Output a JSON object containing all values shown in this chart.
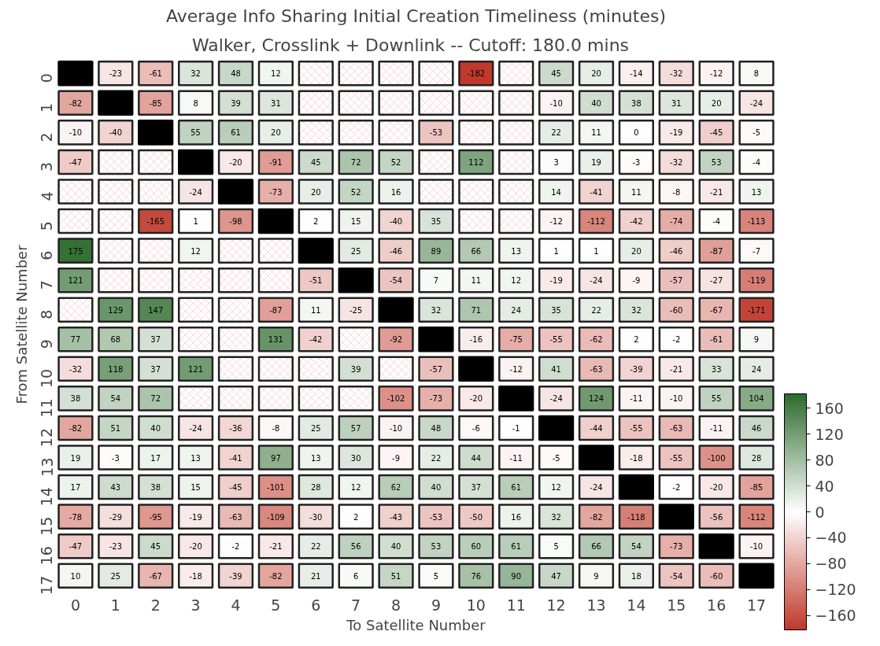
{
  "chart_data": {
    "type": "heatmap",
    "title": "Average Info Sharing Initial Creation Timeliness (minutes)",
    "subtitle": "Walker, Crosslink + Downlink  --  Cutoff: 180.0 mins",
    "xlabel": "To Satellite Number",
    "ylabel": "From Satellite Number",
    "categories": [
      "0",
      "1",
      "2",
      "3",
      "4",
      "5",
      "6",
      "7",
      "8",
      "9",
      "10",
      "11",
      "12",
      "13",
      "14",
      "15",
      "16",
      "17"
    ],
    "y_categories": [
      "0",
      "1",
      "2",
      "3",
      "4",
      "5",
      "6",
      "7",
      "8",
      "9",
      "10",
      "11",
      "12",
      "13",
      "14",
      "15",
      "16",
      "17"
    ],
    "cells": [
      [
        null,
        -23,
        -61,
        32,
        48,
        12,
        null,
        null,
        null,
        null,
        -182,
        null,
        45,
        20,
        -14,
        -32,
        -12,
        8
      ],
      [
        -82,
        null,
        -85,
        8,
        39,
        31,
        null,
        null,
        null,
        null,
        null,
        null,
        -10,
        40,
        38,
        31,
        20,
        -24
      ],
      [
        -10,
        -40,
        null,
        55,
        61,
        20,
        null,
        null,
        null,
        -53,
        null,
        null,
        22,
        11,
        0,
        -19,
        -45,
        -5
      ],
      [
        -47,
        null,
        null,
        null,
        -20,
        -91,
        45,
        72,
        52,
        null,
        112,
        null,
        3,
        19,
        -3,
        -32,
        53,
        -4
      ],
      [
        null,
        null,
        null,
        -24,
        null,
        -73,
        20,
        52,
        16,
        null,
        null,
        null,
        14,
        -41,
        11,
        -8,
        -21,
        13
      ],
      [
        null,
        null,
        -165,
        1,
        -98,
        null,
        2,
        15,
        -40,
        35,
        null,
        null,
        -12,
        -112,
        -42,
        -74,
        -4,
        -113
      ],
      [
        175,
        null,
        null,
        12,
        null,
        null,
        null,
        25,
        -46,
        89,
        66,
        13,
        1,
        1,
        20,
        -46,
        -87,
        -7
      ],
      [
        121,
        null,
        null,
        null,
        null,
        null,
        -51,
        null,
        -54,
        7,
        11,
        12,
        -19,
        -24,
        -9,
        -57,
        -27,
        -119
      ],
      [
        null,
        129,
        147,
        null,
        null,
        -87,
        11,
        -25,
        null,
        32,
        71,
        24,
        35,
        22,
        32,
        -60,
        -67,
        -171
      ],
      [
        77,
        68,
        37,
        null,
        null,
        131,
        -42,
        null,
        -92,
        null,
        -16,
        -75,
        -55,
        -62,
        2,
        -2,
        -61,
        9
      ],
      [
        -32,
        118,
        37,
        121,
        null,
        null,
        null,
        39,
        null,
        -57,
        null,
        -12,
        41,
        -63,
        -39,
        -21,
        33,
        24
      ],
      [
        38,
        54,
        72,
        null,
        null,
        null,
        null,
        null,
        -102,
        -73,
        -20,
        null,
        -24,
        124,
        -11,
        -10,
        55,
        104
      ],
      [
        -82,
        51,
        40,
        -24,
        -36,
        -8,
        25,
        57,
        -10,
        48,
        -6,
        -1,
        null,
        -44,
        -55,
        -63,
        -11,
        46
      ],
      [
        19,
        -3,
        17,
        13,
        -41,
        97,
        13,
        30,
        -9,
        22,
        44,
        -11,
        -5,
        null,
        -18,
        -55,
        -100,
        28
      ],
      [
        17,
        43,
        38,
        15,
        -45,
        -101,
        28,
        12,
        62,
        40,
        37,
        61,
        12,
        -24,
        null,
        -2,
        -20,
        -85
      ],
      [
        -78,
        -29,
        -95,
        -19,
        -63,
        -109,
        -30,
        2,
        -43,
        -53,
        -50,
        16,
        32,
        -82,
        -118,
        null,
        -56,
        -112
      ],
      [
        -47,
        -23,
        45,
        -20,
        -2,
        -21,
        22,
        56,
        40,
        53,
        60,
        61,
        5,
        66,
        54,
        -73,
        null,
        -10
      ],
      [
        10,
        25,
        -67,
        -18,
        -39,
        -82,
        21,
        6,
        51,
        5,
        76,
        90,
        47,
        9,
        18,
        -54,
        -60,
        null
      ]
    ],
    "colors": [
      "#c0392b",
      "#ffffff",
      "#2e6b2e"
    ],
    "clim": [
      -182,
      182
    ],
    "cticks": [
      -160,
      -120,
      -80,
      -40,
      0,
      40,
      80,
      120,
      160
    ],
    "data_labels": true
  }
}
